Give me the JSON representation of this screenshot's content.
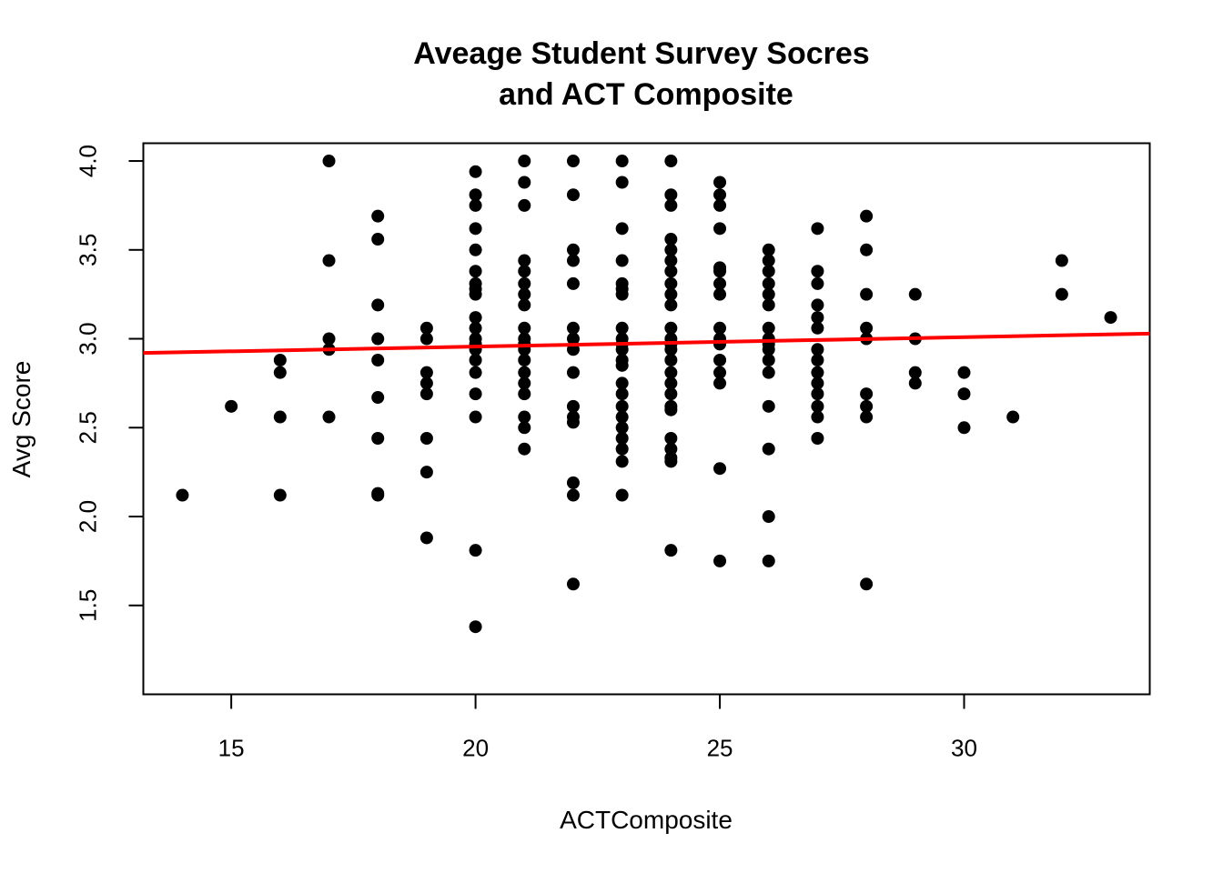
{
  "chart_data": {
    "type": "scatter",
    "title_lines": [
      "Aveage Student Survey Socres",
      "and ACT Composite"
    ],
    "xlabel": "ACTComposite",
    "ylabel": "Avg Score",
    "xlim": [
      13.2,
      33.8
    ],
    "ylim": [
      1.0,
      4.1
    ],
    "xticks": [
      15,
      20,
      25,
      30
    ],
    "yticks": [
      1.5,
      2.0,
      2.5,
      3.0,
      3.5,
      4.0
    ],
    "xtick_labels": [
      "15",
      "20",
      "25",
      "30"
    ],
    "ytick_labels": [
      "1.5",
      "2.0",
      "2.5",
      "3.0",
      "3.5",
      "4.0"
    ],
    "point_color": "#000000",
    "line_color": "#ff0000",
    "regression_line": {
      "intercept": 2.85,
      "slope": 0.0053
    },
    "points": [
      [
        14,
        2.12
      ],
      [
        15,
        2.62
      ],
      [
        16,
        2.88
      ],
      [
        16,
        2.81
      ],
      [
        16,
        2.56
      ],
      [
        16,
        2.12
      ],
      [
        17,
        4.0
      ],
      [
        17,
        3.44
      ],
      [
        17,
        3.0
      ],
      [
        17,
        2.94
      ],
      [
        17,
        2.56
      ],
      [
        18,
        3.69
      ],
      [
        18,
        3.56
      ],
      [
        18,
        3.19
      ],
      [
        18,
        3.0
      ],
      [
        18,
        2.88
      ],
      [
        18,
        2.67
      ],
      [
        18,
        2.44
      ],
      [
        18,
        2.13
      ],
      [
        18,
        2.12
      ],
      [
        19,
        3.06
      ],
      [
        19,
        3.0
      ],
      [
        19,
        2.81
      ],
      [
        19,
        2.75
      ],
      [
        19,
        2.69
      ],
      [
        19,
        2.44
      ],
      [
        19,
        2.25
      ],
      [
        19,
        1.88
      ],
      [
        20,
        3.94
      ],
      [
        20,
        3.81
      ],
      [
        20,
        3.75
      ],
      [
        20,
        3.62
      ],
      [
        20,
        3.5
      ],
      [
        20,
        3.38
      ],
      [
        20,
        3.31
      ],
      [
        20,
        3.28
      ],
      [
        20,
        3.25
      ],
      [
        20,
        3.12
      ],
      [
        20,
        3.06
      ],
      [
        20,
        3.0
      ],
      [
        20,
        2.97
      ],
      [
        20,
        2.94
      ],
      [
        20,
        2.88
      ],
      [
        20,
        2.81
      ],
      [
        20,
        2.69
      ],
      [
        20,
        2.56
      ],
      [
        20,
        1.81
      ],
      [
        20,
        1.38
      ],
      [
        21,
        4.0
      ],
      [
        21,
        3.88
      ],
      [
        21,
        3.75
      ],
      [
        21,
        3.44
      ],
      [
        21,
        3.38
      ],
      [
        21,
        3.31
      ],
      [
        21,
        3.25
      ],
      [
        21,
        3.19
      ],
      [
        21,
        3.06
      ],
      [
        21,
        3.0
      ],
      [
        21,
        2.97
      ],
      [
        21,
        2.94
      ],
      [
        21,
        2.88
      ],
      [
        21,
        2.81
      ],
      [
        21,
        2.75
      ],
      [
        21,
        2.69
      ],
      [
        21,
        2.56
      ],
      [
        21,
        2.5
      ],
      [
        21,
        2.38
      ],
      [
        22,
        4.0
      ],
      [
        22,
        3.81
      ],
      [
        22,
        3.5
      ],
      [
        22,
        3.44
      ],
      [
        22,
        3.31
      ],
      [
        22,
        3.06
      ],
      [
        22,
        3.0
      ],
      [
        22,
        2.94
      ],
      [
        22,
        2.81
      ],
      [
        22,
        2.62
      ],
      [
        22,
        2.56
      ],
      [
        22,
        2.53
      ],
      [
        22,
        2.19
      ],
      [
        22,
        2.12
      ],
      [
        22,
        1.62
      ],
      [
        23,
        4.0
      ],
      [
        23,
        3.88
      ],
      [
        23,
        3.62
      ],
      [
        23,
        3.44
      ],
      [
        23,
        3.31
      ],
      [
        23,
        3.28
      ],
      [
        23,
        3.25
      ],
      [
        23,
        3.06
      ],
      [
        23,
        3.0
      ],
      [
        23,
        2.97
      ],
      [
        23,
        2.94
      ],
      [
        23,
        2.88
      ],
      [
        23,
        2.85
      ],
      [
        23,
        2.75
      ],
      [
        23,
        2.69
      ],
      [
        23,
        2.62
      ],
      [
        23,
        2.56
      ],
      [
        23,
        2.5
      ],
      [
        23,
        2.44
      ],
      [
        23,
        2.38
      ],
      [
        23,
        2.31
      ],
      [
        23,
        2.12
      ],
      [
        24,
        4.0
      ],
      [
        24,
        3.81
      ],
      [
        24,
        3.75
      ],
      [
        24,
        3.56
      ],
      [
        24,
        3.5
      ],
      [
        24,
        3.44
      ],
      [
        24,
        3.38
      ],
      [
        24,
        3.31
      ],
      [
        24,
        3.25
      ],
      [
        24,
        3.19
      ],
      [
        24,
        3.06
      ],
      [
        24,
        3.0
      ],
      [
        24,
        2.97
      ],
      [
        24,
        2.94
      ],
      [
        24,
        2.88
      ],
      [
        24,
        2.81
      ],
      [
        24,
        2.75
      ],
      [
        24,
        2.69
      ],
      [
        24,
        2.62
      ],
      [
        24,
        2.6
      ],
      [
        24,
        2.44
      ],
      [
        24,
        2.38
      ],
      [
        24,
        2.33
      ],
      [
        24,
        2.31
      ],
      [
        24,
        1.81
      ],
      [
        25,
        3.88
      ],
      [
        25,
        3.81
      ],
      [
        25,
        3.75
      ],
      [
        25,
        3.62
      ],
      [
        25,
        3.4
      ],
      [
        25,
        3.38
      ],
      [
        25,
        3.31
      ],
      [
        25,
        3.25
      ],
      [
        25,
        3.06
      ],
      [
        25,
        3.0
      ],
      [
        25,
        2.97
      ],
      [
        25,
        2.88
      ],
      [
        25,
        2.81
      ],
      [
        25,
        2.75
      ],
      [
        25,
        2.27
      ],
      [
        25,
        1.75
      ],
      [
        26,
        3.5
      ],
      [
        26,
        3.44
      ],
      [
        26,
        3.38
      ],
      [
        26,
        3.31
      ],
      [
        26,
        3.25
      ],
      [
        26,
        3.19
      ],
      [
        26,
        3.06
      ],
      [
        26,
        3.0
      ],
      [
        26,
        2.97
      ],
      [
        26,
        2.94
      ],
      [
        26,
        2.88
      ],
      [
        26,
        2.81
      ],
      [
        26,
        2.62
      ],
      [
        26,
        2.38
      ],
      [
        26,
        2.0
      ],
      [
        26,
        1.75
      ],
      [
        27,
        3.62
      ],
      [
        27,
        3.38
      ],
      [
        27,
        3.31
      ],
      [
        27,
        3.19
      ],
      [
        27,
        3.12
      ],
      [
        27,
        3.06
      ],
      [
        27,
        2.94
      ],
      [
        27,
        2.88
      ],
      [
        27,
        2.81
      ],
      [
        27,
        2.75
      ],
      [
        27,
        2.69
      ],
      [
        27,
        2.62
      ],
      [
        27,
        2.56
      ],
      [
        27,
        2.44
      ],
      [
        28,
        3.69
      ],
      [
        28,
        3.5
      ],
      [
        28,
        3.25
      ],
      [
        28,
        3.06
      ],
      [
        28,
        3.0
      ],
      [
        28,
        2.69
      ],
      [
        28,
        2.62
      ],
      [
        28,
        2.56
      ],
      [
        28,
        1.62
      ],
      [
        29,
        3.25
      ],
      [
        29,
        3.0
      ],
      [
        29,
        2.81
      ],
      [
        29,
        2.75
      ],
      [
        30,
        2.81
      ],
      [
        30,
        2.69
      ],
      [
        30,
        2.5
      ],
      [
        31,
        2.56
      ],
      [
        32,
        3.44
      ],
      [
        32,
        3.25
      ],
      [
        33,
        3.12
      ]
    ]
  }
}
